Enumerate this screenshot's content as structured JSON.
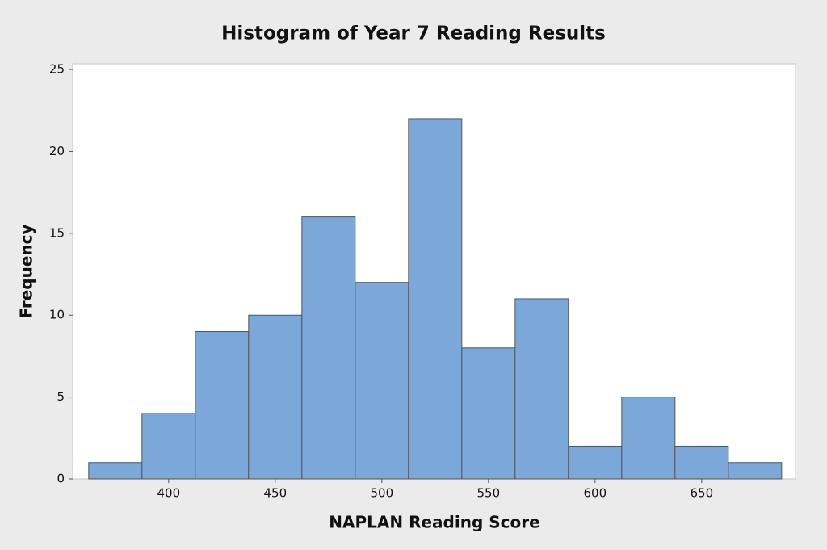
{
  "chart_data": {
    "type": "histogram",
    "title": "Histogram of Year 7 Reading Results",
    "x_label": "NAPLAN Reading Score",
    "y_label": "Frequency",
    "bins": [
      362.5,
      387.5,
      412.5,
      437.5,
      462.5,
      487.5,
      512.5,
      537.5,
      562.5,
      587.5,
      612.5,
      637.5,
      662.5,
      687.5
    ],
    "values": [
      1,
      4,
      9,
      10,
      16,
      12,
      22,
      8,
      11,
      2,
      5,
      2,
      1
    ],
    "color": "#7ba7d9",
    "xlim": [
      355,
      694
    ],
    "xticks": [
      400,
      450,
      500,
      550,
      600,
      650
    ],
    "ylim": [
      0,
      25.35
    ],
    "yticks": [
      0,
      5,
      10,
      15,
      20,
      25
    ],
    "grid": false
  }
}
